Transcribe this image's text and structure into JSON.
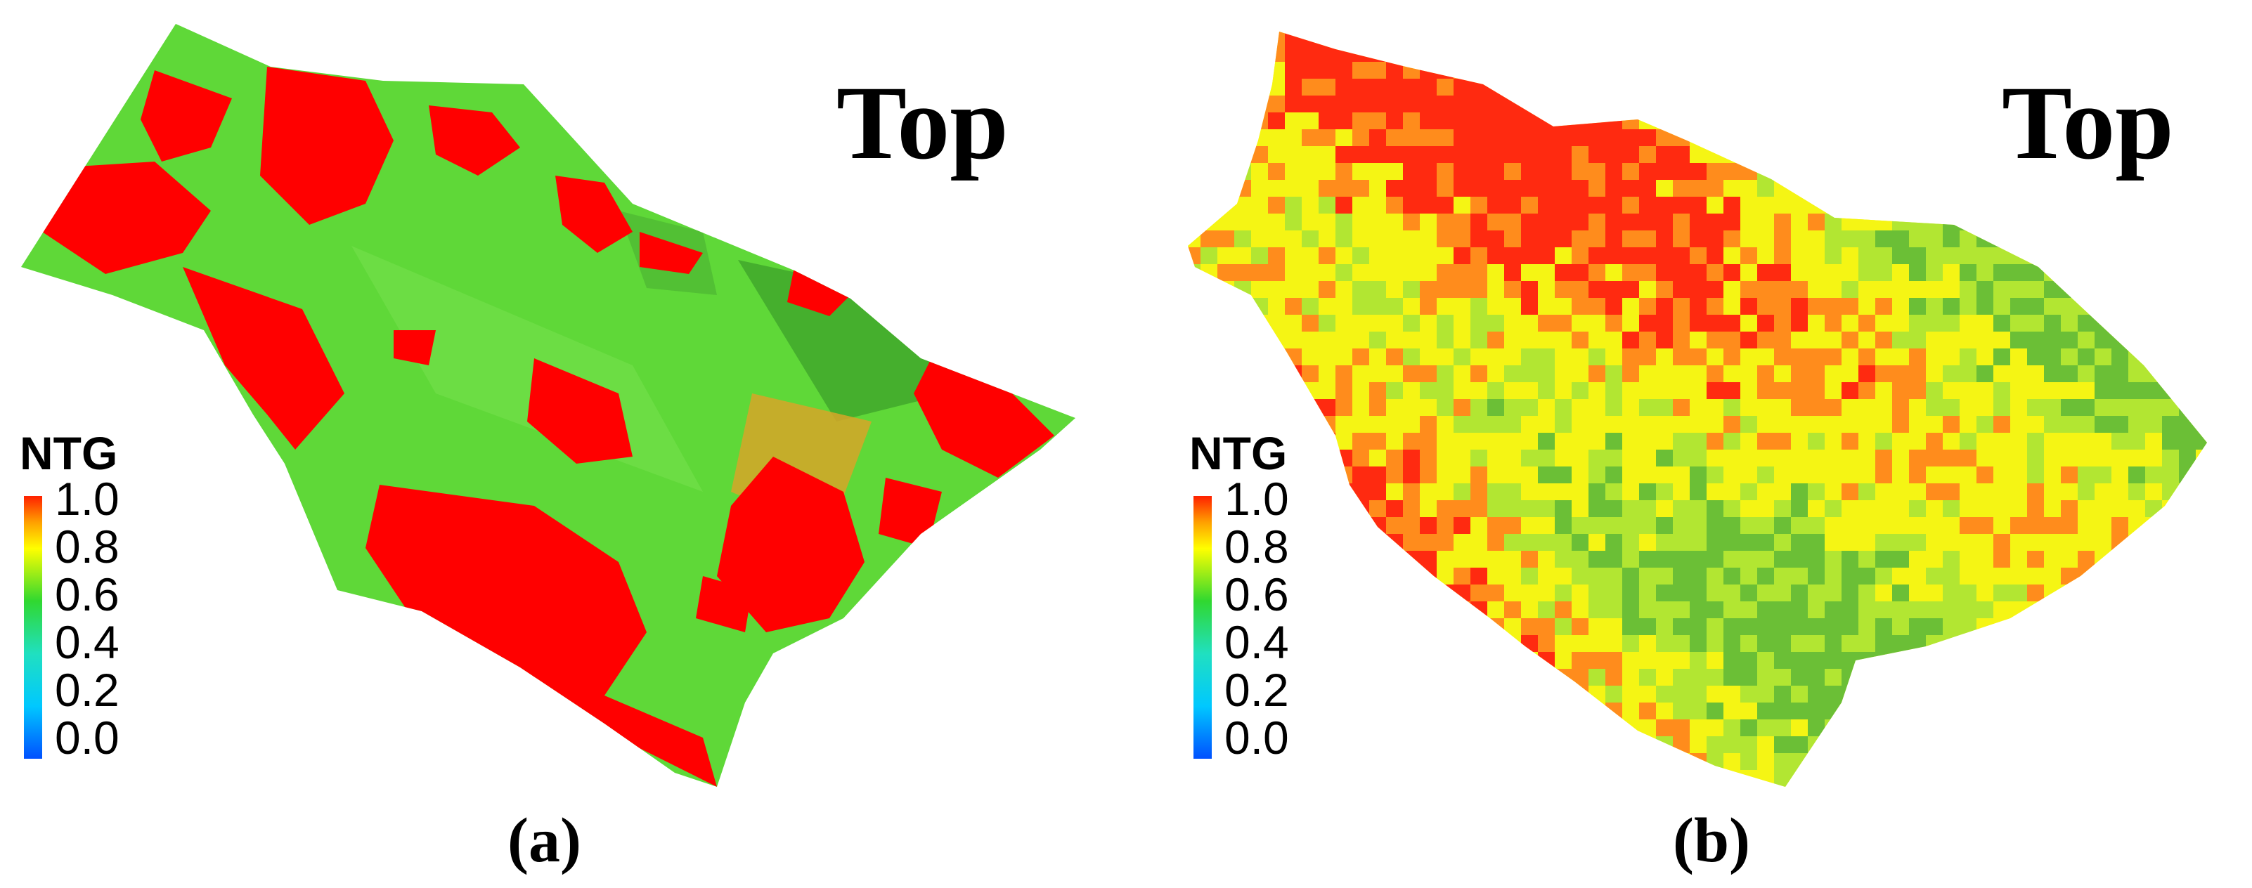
{
  "colorbar": {
    "title": "NTG",
    "ticks": [
      "1.0",
      "0.8",
      "0.6",
      "0.4",
      "0.2",
      "0.0"
    ],
    "stops": [
      {
        "value": 0.0,
        "color": "#0050ff"
      },
      {
        "value": 0.2,
        "color": "#00c8ff"
      },
      {
        "value": 0.4,
        "color": "#20e0c0"
      },
      {
        "value": 0.6,
        "color": "#30d830"
      },
      {
        "value": 0.8,
        "color": "#ffff00"
      },
      {
        "value": 0.9,
        "color": "#ffa000"
      },
      {
        "value": 1.0,
        "color": "#ff2000"
      }
    ]
  },
  "panels": [
    {
      "view_label": "Top",
      "panel_label": "(a)",
      "rendering": "facies surface (binary red / green)",
      "colors": {
        "high": "#ff0000",
        "mid": "#5fd838",
        "dark": "#3fa52a",
        "orange": "#d7a628"
      }
    },
    {
      "view_label": "Top",
      "panel_label": "(b)",
      "rendering": "pixelated grid (continuous NTG)",
      "colors": {
        "red": "#ff2a10",
        "orange": "#ff8c1c",
        "yellow": "#f5f514",
        "lime": "#b2e632",
        "green": "#6bbf36"
      }
    }
  ]
}
